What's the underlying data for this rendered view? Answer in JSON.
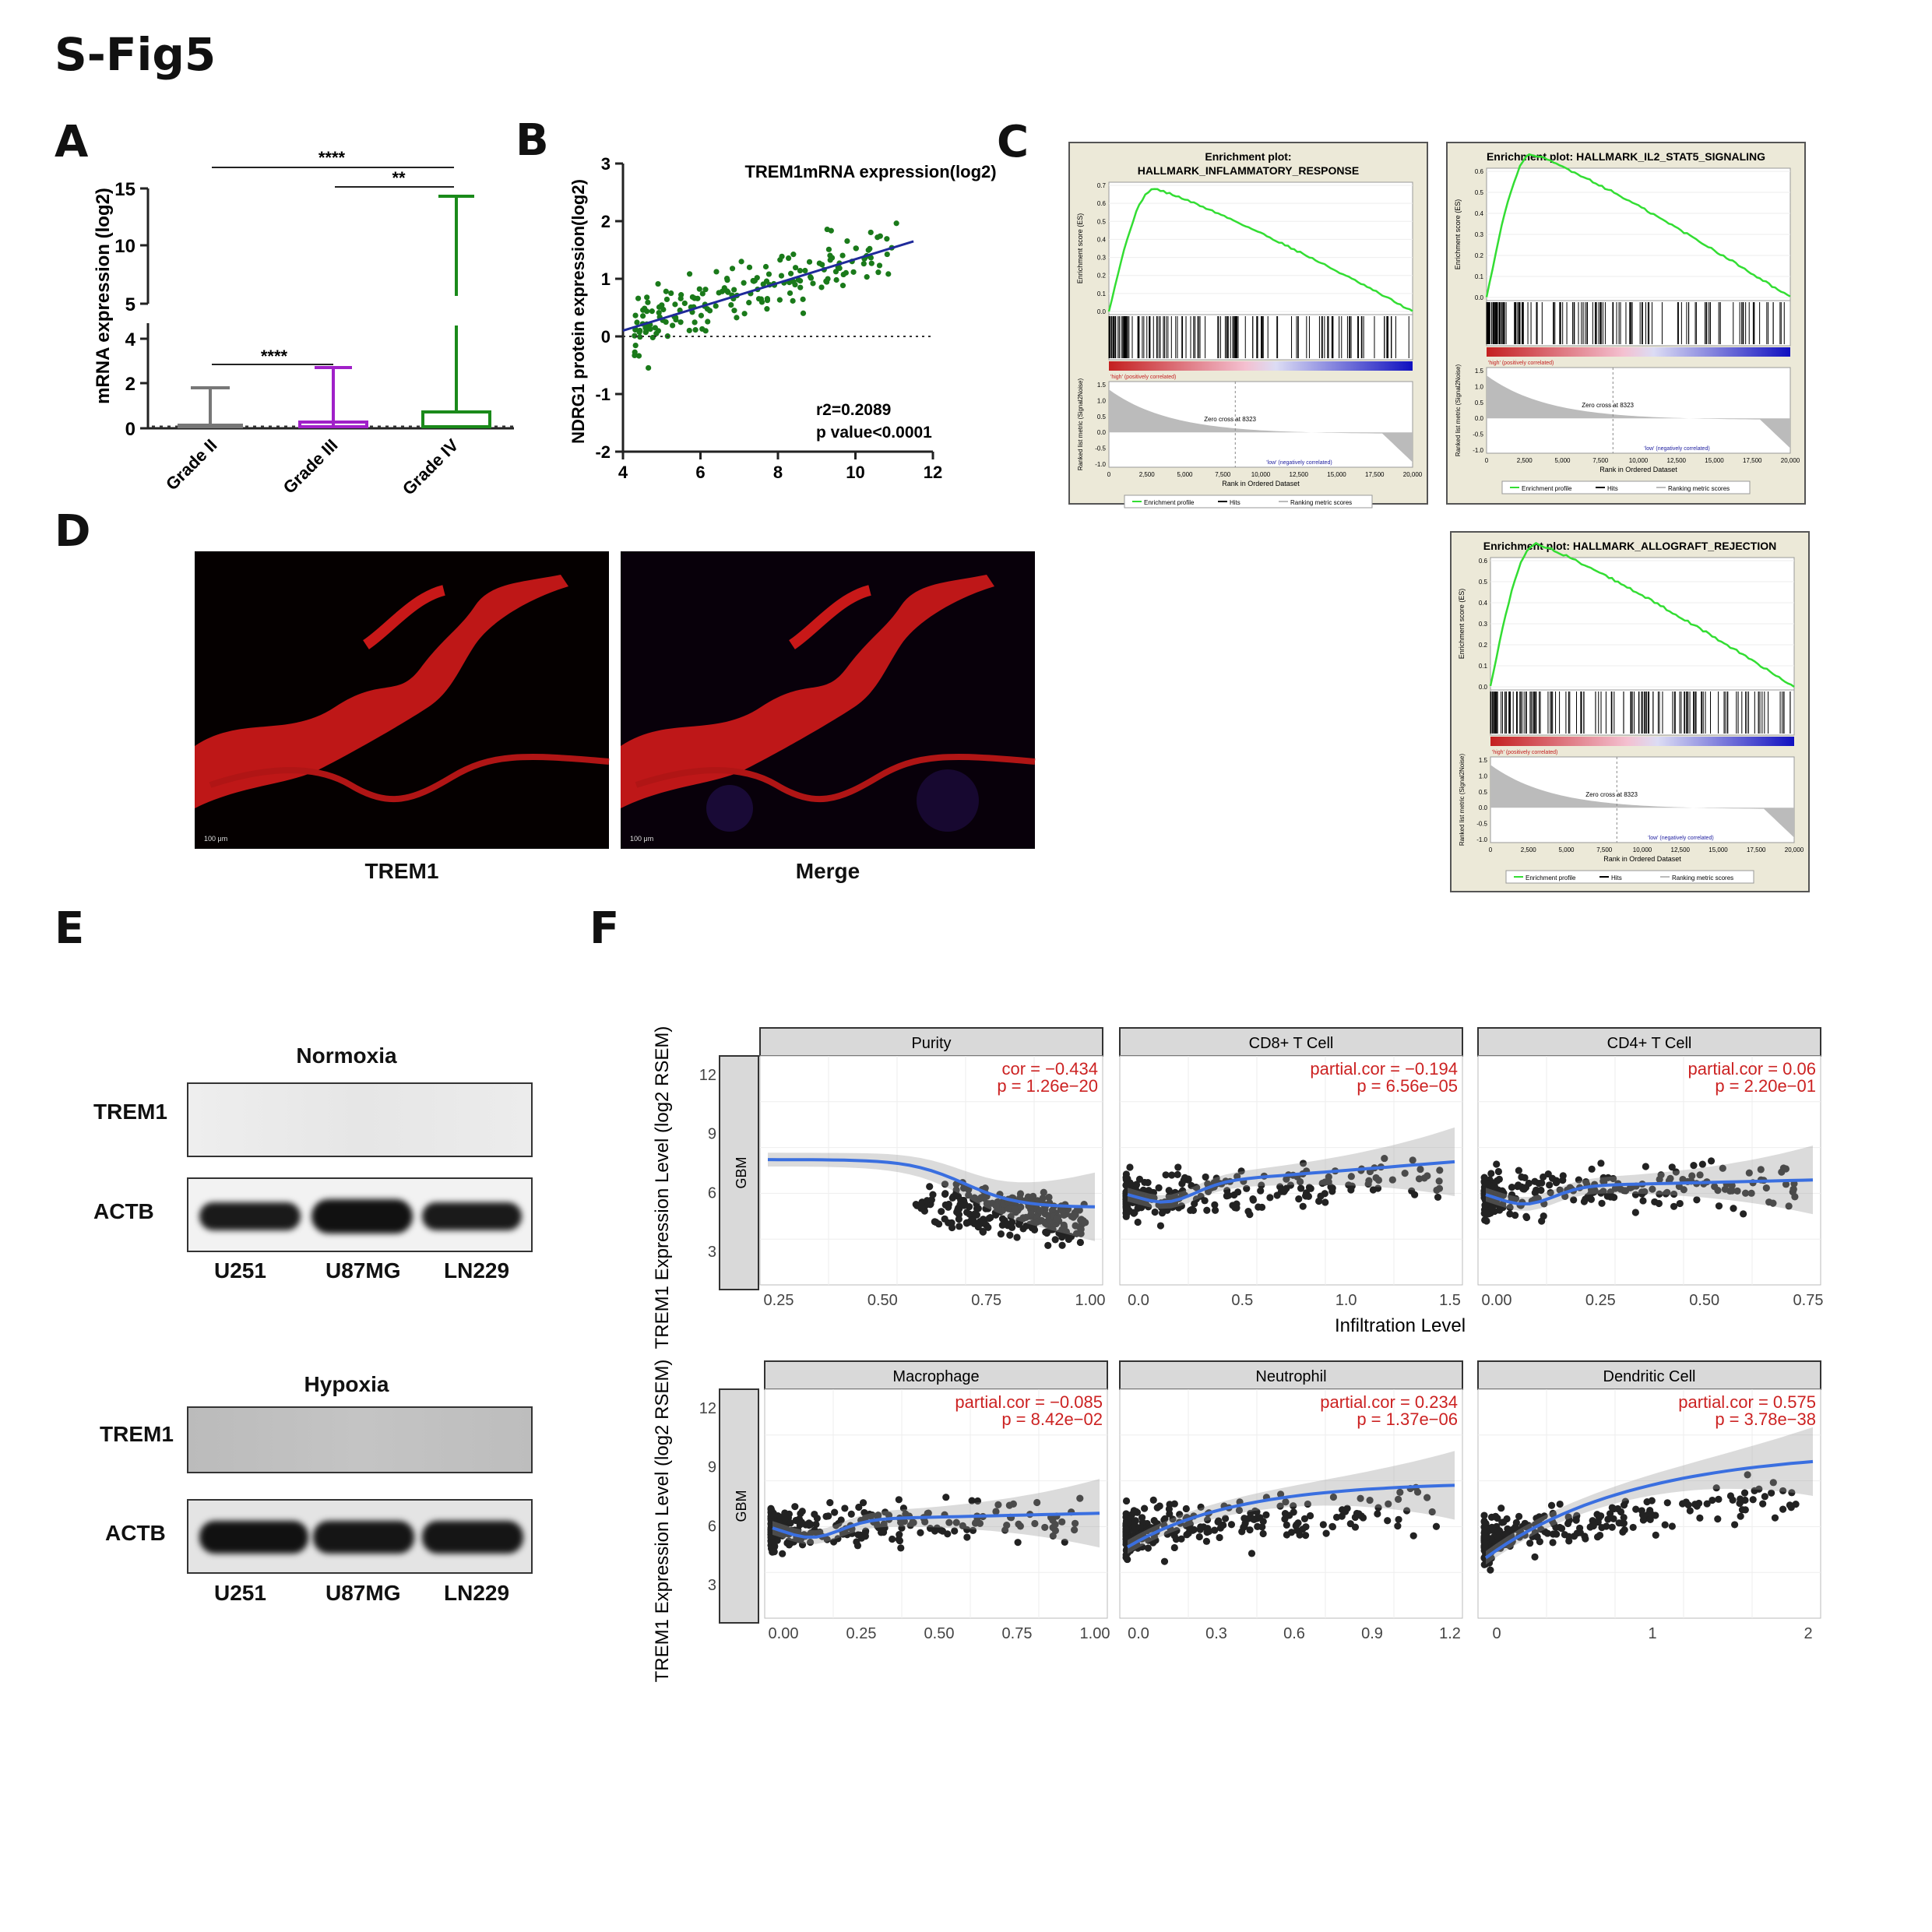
{
  "figure_label": "S-Fig5",
  "panels": {
    "a": "A",
    "b": "B",
    "c": "C",
    "d": "D",
    "e": "E",
    "f": "F"
  },
  "colors": {
    "grade2": "#777777",
    "grade3": "#a020c8",
    "grade4": "#1a8a1a",
    "scatter_green": "#1a7a1a",
    "regression": "#1f2a9a",
    "gsea_line": "#33dd33",
    "loess": "#3a6fe0",
    "annot": "#cc2222"
  },
  "panel_a": {
    "ylabel": "mRNA expression (log2)",
    "yticks_top": [
      "15",
      "10",
      "5"
    ],
    "yticks_bottom": [
      "4",
      "2",
      "0"
    ],
    "sig_top": "****",
    "sig_mid": "**",
    "sig_low": "****"
  },
  "panel_b": {
    "title": "TREM1mRNA expression(log2)",
    "ylabel": "NDRG1 protein expression(log2)",
    "xticks": [
      "4",
      "6",
      "8",
      "10",
      "12"
    ],
    "yticks": [
      "3",
      "2",
      "1",
      "0",
      "-1",
      "-2"
    ],
    "r2": "r2=0.2089",
    "pvalue": "p value<0.0001"
  },
  "panel_c": [
    {
      "title1": "Enrichment plot:",
      "title2": "HALLMARK_INFLAMMATORY_RESPONSE",
      "es_ticks": [
        "0.7",
        "0.6",
        "0.5",
        "0.4",
        "0.3",
        "0.2",
        "0.1",
        "0.0"
      ]
    },
    {
      "title1": "Enrichment plot: HALLMARK_IL2_STAT5_SIGNALING",
      "title2": "",
      "es_ticks": [
        "0.6",
        "0.5",
        "0.4",
        "0.3",
        "0.2",
        "0.1",
        "0.0"
      ]
    },
    {
      "title1": "Enrichment plot: HALLMARK_ALLOGRAFT_REJECTION",
      "title2": "",
      "es_ticks": [
        "0.6",
        "0.5",
        "0.4",
        "0.3",
        "0.2",
        "0.1",
        "0.0"
      ]
    }
  ],
  "gsea_common": {
    "es_label": "Enrichment score (ES)",
    "rank_label": "Ranked list metric (Signal2Noise)",
    "rank_ticks": [
      "1.5",
      "1.0",
      "0.5",
      "0.0",
      "-0.5",
      "-1.0"
    ],
    "x_ticks": [
      "0",
      "2,500",
      "5,000",
      "7,500",
      "10,000",
      "12,500",
      "15,000",
      "17,500",
      "20,000"
    ],
    "xlabel": "Rank in Ordered Dataset",
    "high_label": "'high' (positively correlated)",
    "low_label": "'low' (negatively correlated)",
    "zero_cross": "Zero cross at 8323",
    "legend": [
      "Enrichment profile",
      "Hits",
      "Ranking metric scores"
    ]
  },
  "panel_d": {
    "captions": [
      "TREM1",
      "Merge"
    ],
    "scale_text": "100 μm"
  },
  "panel_e": {
    "blocks": [
      {
        "title": "Normoxia",
        "rows": [
          "TREM1",
          "ACTB"
        ]
      },
      {
        "title": "Hypoxia",
        "rows": [
          "TREM1",
          "ACTB"
        ]
      }
    ],
    "lanes": [
      "U251",
      "U87MG",
      "LN229"
    ]
  },
  "chart_data": [
    {
      "type": "bar",
      "title": "",
      "ylabel": "mRNA expression (log2)",
      "categories": [
        "Grade II",
        "Grade III",
        "Grade IV"
      ],
      "note": "box plot: whisker max values (log2)",
      "values": [
        1.8,
        2.8,
        14.7
      ],
      "ylim": [
        0,
        15
      ],
      "significance": [
        {
          "pair": [
            "Grade II",
            "Grade IV"
          ],
          "label": "****"
        },
        {
          "pair": [
            "Grade III",
            "Grade IV"
          ],
          "label": "**"
        },
        {
          "pair": [
            "Grade II",
            "Grade III"
          ],
          "label": "****"
        }
      ]
    },
    {
      "type": "scatter",
      "title": "TREM1mRNA expression(log2)",
      "xlabel": "",
      "ylabel": "NDRG1 protein expression(log2)",
      "xlim": [
        4,
        12
      ],
      "ylim": [
        -2,
        3
      ],
      "regression": {
        "x": [
          4,
          11.5
        ],
        "y": [
          0.1,
          1.65
        ]
      },
      "annotation": [
        "r2=0.2089",
        "p value<0.0001"
      ]
    },
    {
      "type": "scatter",
      "title": "",
      "ylabel": "TREM1 Expression Level (log2 RSEM)",
      "xlabel": "Infiltration Level",
      "row_label": "GBM",
      "yticks": [
        "12",
        "9",
        "6",
        "3"
      ],
      "panels": [
        {
          "name": "Purity",
          "stat1": "cor = −0.434",
          "stat2": "p = 1.26e−20",
          "xticks": [
            "0.25",
            "0.50",
            "0.75",
            "1.00"
          ]
        },
        {
          "name": "CD8+ T Cell",
          "stat1": "partial.cor = −0.194",
          "stat2": "p = 6.56e−05",
          "xticks": [
            "0.0",
            "0.5",
            "1.0",
            "1.5"
          ]
        },
        {
          "name": "CD4+ T Cell",
          "stat1": "partial.cor = 0.06",
          "stat2": "p = 2.20e−01",
          "xticks": [
            "0.00",
            "0.25",
            "0.50",
            "0.75"
          ]
        },
        {
          "name": "Macrophage",
          "stat1": "partial.cor = −0.085",
          "stat2": "p = 8.42e−02",
          "xticks": [
            "0.00",
            "0.25",
            "0.50",
            "0.75",
            "1.00"
          ]
        },
        {
          "name": "Neutrophil",
          "stat1": "partial.cor = 0.234",
          "stat2": "p = 1.37e−06",
          "xticks": [
            "0.0",
            "0.3",
            "0.6",
            "0.9",
            "1.2"
          ]
        },
        {
          "name": "Dendritic Cell",
          "stat1": "partial.cor = 0.575",
          "stat2": "p = 3.78e−38",
          "xticks": [
            "0",
            "1",
            "2"
          ]
        }
      ]
    }
  ]
}
